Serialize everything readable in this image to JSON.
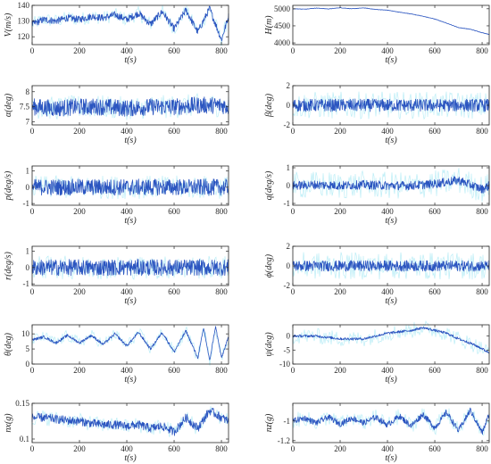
{
  "chart_data": [
    {
      "type": "line",
      "xlabel": "t(s)",
      "ylabel": "V(m/s)",
      "xlim": [
        0,
        830
      ],
      "ylim": [
        115,
        140
      ],
      "xticks": [
        "0",
        "200",
        "400",
        "600",
        "800"
      ],
      "yticks": [
        "120",
        "130",
        "140"
      ],
      "ytick_values": [
        120,
        130,
        140
      ],
      "grid": false,
      "series": [
        {
          "color": "#2b55c0",
          "x": [
            0,
            50,
            100,
            150,
            200,
            250,
            300,
            350,
            400,
            450,
            500,
            550,
            600,
            650,
            700,
            750,
            800,
            830
          ],
          "values": [
            128,
            131,
            130,
            132,
            131,
            133,
            132,
            134,
            131,
            135,
            128,
            136,
            125,
            137,
            123,
            138,
            118,
            133
          ]
        }
      ]
    },
    {
      "type": "line",
      "xlabel": "t(s)",
      "ylabel": "H(m)",
      "xlim": [
        0,
        830
      ],
      "ylim": [
        3950,
        5100
      ],
      "xticks": [
        "0",
        "200",
        "400",
        "600",
        "800"
      ],
      "yticks": [
        "4000",
        "4500",
        "5000"
      ],
      "ytick_values": [
        4000,
        4500,
        5000
      ],
      "grid": false,
      "series": [
        {
          "color": "#2b55c0",
          "x": [
            0,
            50,
            100,
            150,
            200,
            250,
            300,
            350,
            400,
            450,
            500,
            550,
            600,
            650,
            700,
            750,
            800,
            830
          ],
          "values": [
            5000,
            4990,
            5020,
            4995,
            5030,
            5000,
            5025,
            4980,
            4960,
            4900,
            4850,
            4780,
            4700,
            4580,
            4450,
            4400,
            4300,
            4250
          ]
        }
      ]
    },
    {
      "type": "line",
      "xlabel": "t(s)",
      "ylabel": "α(deg)",
      "xlim": [
        0,
        830
      ],
      "ylim": [
        6.9,
        8.2
      ],
      "xticks": [
        "0",
        "200",
        "400",
        "600",
        "800"
      ],
      "yticks": [
        "7",
        "7.5",
        "8"
      ],
      "ytick_values": [
        7,
        7.5,
        8
      ],
      "grid": false,
      "series": [
        {
          "color": "#2b55c0",
          "x": [
            0,
            100,
            200,
            300,
            400,
            500,
            600,
            700,
            800,
            830
          ],
          "values": [
            7.5,
            7.45,
            7.5,
            7.5,
            7.45,
            7.5,
            7.5,
            7.55,
            7.55,
            7.5
          ]
        }
      ]
    },
    {
      "type": "line",
      "xlabel": "t(s)",
      "ylabel": "β(deg)",
      "xlim": [
        0,
        830
      ],
      "ylim": [
        -2,
        2
      ],
      "xticks": [
        "0",
        "200",
        "400",
        "600",
        "800"
      ],
      "yticks": [
        "-2",
        "0",
        "2"
      ],
      "ytick_values": [
        -2,
        0,
        2
      ],
      "grid": false,
      "series": [
        {
          "color": "#2b55c0",
          "x": [
            0,
            100,
            200,
            300,
            400,
            500,
            600,
            700,
            800,
            830
          ],
          "values": [
            0,
            0,
            0,
            0,
            0,
            0,
            0,
            0,
            0,
            0
          ]
        }
      ]
    },
    {
      "type": "line",
      "xlabel": "t(s)",
      "ylabel": "p(deg/s)",
      "xlim": [
        0,
        830
      ],
      "ylim": [
        -1.1,
        1.3
      ],
      "xticks": [
        "0",
        "200",
        "400",
        "600",
        "800"
      ],
      "yticks": [
        "-1",
        "0",
        "1"
      ],
      "ytick_values": [
        -1,
        0,
        1
      ],
      "grid": false,
      "series": [
        {
          "color": "#2b55c0",
          "x": [
            0,
            100,
            200,
            300,
            400,
            500,
            600,
            700,
            800,
            830
          ],
          "values": [
            0,
            0,
            0,
            0,
            0,
            0,
            0,
            0,
            0,
            0
          ]
        }
      ]
    },
    {
      "type": "line",
      "xlabel": "t(s)",
      "ylabel": "q(deg/s)",
      "xlim": [
        0,
        830
      ],
      "ylim": [
        -1.1,
        1.1
      ],
      "xticks": [
        "0",
        "200",
        "400",
        "600",
        "800"
      ],
      "yticks": [
        "-1",
        "0",
        "1"
      ],
      "ytick_values": [
        -1,
        0,
        1
      ],
      "grid": false,
      "series": [
        {
          "color": "#2b55c0",
          "x": [
            0,
            100,
            200,
            300,
            400,
            500,
            600,
            700,
            800,
            830
          ],
          "values": [
            0,
            0.05,
            0,
            0.05,
            0,
            0,
            0.1,
            0.3,
            -0.2,
            0
          ]
        }
      ]
    },
    {
      "type": "line",
      "xlabel": "t(s)",
      "ylabel": "r(deg/s)",
      "xlim": [
        0,
        830
      ],
      "ylim": [
        -1.1,
        1.3
      ],
      "xticks": [
        "0",
        "200",
        "400",
        "600",
        "800"
      ],
      "yticks": [
        "-1",
        "0",
        "1"
      ],
      "ytick_values": [
        -1,
        0,
        1
      ],
      "grid": false,
      "series": [
        {
          "color": "#2b55c0",
          "x": [
            0,
            100,
            200,
            300,
            400,
            500,
            600,
            700,
            800,
            830
          ],
          "values": [
            0,
            0,
            0,
            0,
            0,
            0,
            0,
            0,
            0,
            0
          ]
        }
      ]
    },
    {
      "type": "line",
      "xlabel": "t(s)",
      "ylabel": "ϕ(deg)",
      "xlim": [
        0,
        830
      ],
      "ylim": [
        -2,
        2
      ],
      "xticks": [
        "0",
        "200",
        "400",
        "600",
        "800"
      ],
      "yticks": [
        "-2",
        "0",
        "2"
      ],
      "ytick_values": [
        -2,
        0,
        2
      ],
      "grid": false,
      "series": [
        {
          "color": "#2b55c0",
          "x": [
            0,
            100,
            200,
            300,
            400,
            500,
            600,
            700,
            800,
            830
          ],
          "values": [
            0,
            0,
            0,
            0,
            0,
            0,
            0,
            0,
            0,
            0
          ]
        }
      ]
    },
    {
      "type": "line",
      "xlabel": "t(s)",
      "ylabel": "θ(deg)",
      "xlim": [
        0,
        830
      ],
      "ylim": [
        0,
        13
      ],
      "xticks": [
        "0",
        "200",
        "400",
        "600",
        "800"
      ],
      "yticks": [
        "0",
        "5",
        "10"
      ],
      "ytick_values": [
        0,
        5,
        10
      ],
      "grid": false,
      "series": [
        {
          "color": "#2b55c0",
          "x": [
            0,
            50,
            100,
            150,
            200,
            250,
            300,
            350,
            400,
            450,
            500,
            550,
            600,
            650,
            700,
            725,
            750,
            775,
            800,
            830
          ],
          "values": [
            8,
            9,
            7,
            9.5,
            7,
            9.5,
            6.5,
            10,
            6,
            10.5,
            5,
            10.5,
            4,
            11,
            2,
            12,
            1,
            12.5,
            2,
            9
          ]
        }
      ]
    },
    {
      "type": "line",
      "xlabel": "t(s)",
      "ylabel": "ψ(deg)",
      "xlim": [
        0,
        830
      ],
      "ylim": [
        -10,
        4
      ],
      "xticks": [
        "0",
        "200",
        "400",
        "600",
        "800"
      ],
      "yticks": [
        "-10",
        "-5",
        "0"
      ],
      "ytick_values": [
        -10,
        -5,
        0
      ],
      "grid": false,
      "series": [
        {
          "color": "#2b55c0",
          "x": [
            0,
            100,
            200,
            300,
            400,
            500,
            550,
            600,
            650,
            700,
            750,
            800,
            830
          ],
          "values": [
            0,
            0,
            -1,
            -1,
            1,
            2,
            3,
            2,
            1,
            -1,
            -2.5,
            -4.5,
            -6
          ]
        }
      ]
    },
    {
      "type": "line",
      "xlabel": "t(s)",
      "ylabel": "nx(g)",
      "xlim": [
        0,
        830
      ],
      "ylim": [
        0.095,
        0.15
      ],
      "xticks": [
        "0",
        "200",
        "400",
        "600",
        "800"
      ],
      "yticks": [
        "0.1",
        "0.15"
      ],
      "ytick_values": [
        0.1,
        0.15
      ],
      "grid": false,
      "series": [
        {
          "color": "#2b55c0",
          "x": [
            0,
            50,
            100,
            150,
            200,
            250,
            300,
            350,
            400,
            450,
            500,
            550,
            600,
            650,
            700,
            750,
            800,
            830
          ],
          "values": [
            0.13,
            0.13,
            0.128,
            0.126,
            0.125,
            0.122,
            0.12,
            0.12,
            0.118,
            0.12,
            0.115,
            0.118,
            0.11,
            0.13,
            0.115,
            0.14,
            0.13,
            0.125
          ]
        }
      ]
    },
    {
      "type": "line",
      "xlabel": "t(s)",
      "ylabel": "nz(g)",
      "xlim": [
        0,
        830
      ],
      "ylim": [
        -1.22,
        -0.82
      ],
      "xticks": [
        "0",
        "200",
        "400",
        "600",
        "800"
      ],
      "yticks": [
        "-1.2",
        "-1"
      ],
      "ytick_values": [
        -1.2,
        -1
      ],
      "grid": false,
      "series": [
        {
          "color": "#2b55c0",
          "x": [
            0,
            50,
            100,
            150,
            200,
            250,
            300,
            350,
            400,
            450,
            500,
            550,
            600,
            650,
            700,
            750,
            800,
            830
          ],
          "values": [
            -1.0,
            -0.97,
            -1.02,
            -0.96,
            -1.03,
            -0.97,
            -1.02,
            -0.96,
            -1.04,
            -0.95,
            -1.05,
            -0.93,
            -1.07,
            -0.91,
            -1.1,
            -0.89,
            -1.12,
            -0.93
          ]
        }
      ]
    }
  ]
}
